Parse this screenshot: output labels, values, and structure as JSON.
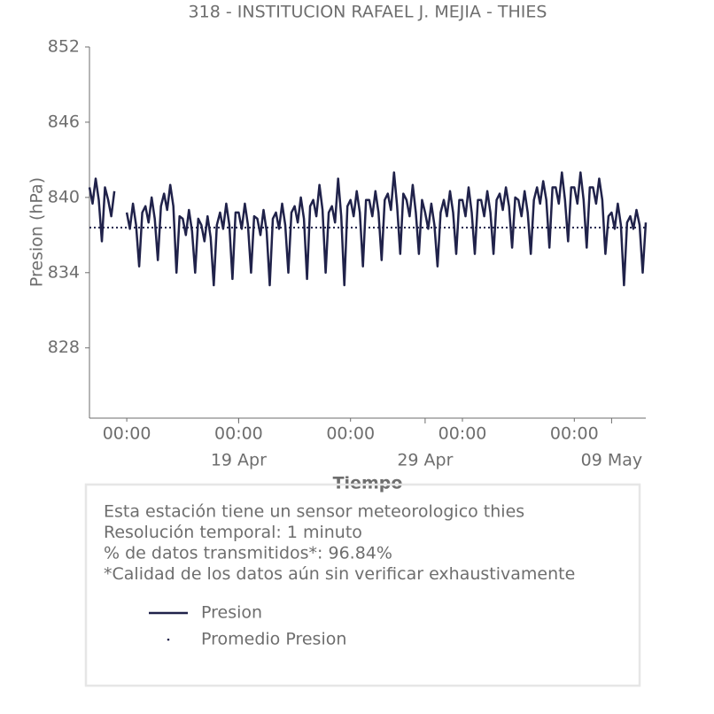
{
  "chart_data": {
    "type": "line",
    "title": "318 - INSTITUCION RAFAEL J. MEJIA - THIES",
    "y_label": "Presion (hPa)",
    "x_label": "Tiempo",
    "info": [
      "Esta estación tiene un sensor meteorologico thies",
      "Resolución temporal: 1 minuto",
      "% de datos transmitidos*: 96.84%",
      "*Calidad de los datos aún sin verificar exhaustivamente"
    ],
    "ylim": [
      822.4,
      852
    ],
    "yticks": [
      828,
      834,
      840,
      846,
      852
    ],
    "xlim": [
      "11 Apr 00:00",
      "10 May 20:00"
    ],
    "xticks": [
      {
        "value": "13 Apr 00:00",
        "label": "00:00"
      },
      {
        "value": "19 Apr 00:00",
        "label": "00:00"
      },
      {
        "value": "25 Apr 00:00",
        "label": "00:00"
      },
      {
        "value": "01 May 00:00",
        "label": "00:00"
      },
      {
        "value": "07 May 00:00",
        "label": "00:00"
      }
    ],
    "date_ticks": [
      {
        "value": "19 Apr 00:00",
        "label": "19 Apr"
      },
      {
        "value": "29 Apr 00:00",
        "label": "29 Apr"
      },
      {
        "value": "09 May 00:00",
        "label": "09 May"
      }
    ],
    "x": [
      "11 Apr 00:00",
      "11 Apr 04:00",
      "11 Apr 08:00",
      "11 Apr 12:00",
      "11 Apr 16:00",
      "11 Apr 20:00",
      "12 Apr 00:00",
      "12 Apr 04:00",
      "12 Apr 08:00",
      "12 Apr 12:00",
      "12 Apr 16:00",
      "12 Apr 20:00",
      "13 Apr 00:00",
      "13 Apr 04:00",
      "13 Apr 08:00",
      "13 Apr 12:00",
      "13 Apr 16:00",
      "13 Apr 20:00",
      "14 Apr 00:00",
      "14 Apr 04:00",
      "14 Apr 08:00",
      "14 Apr 12:00",
      "14 Apr 16:00",
      "14 Apr 20:00",
      "15 Apr 00:00",
      "15 Apr 04:00",
      "15 Apr 08:00",
      "15 Apr 12:00",
      "15 Apr 16:00",
      "15 Apr 20:00",
      "16 Apr 00:00",
      "16 Apr 04:00",
      "16 Apr 08:00",
      "16 Apr 12:00",
      "16 Apr 16:00",
      "16 Apr 20:00",
      "17 Apr 00:00",
      "17 Apr 04:00",
      "17 Apr 08:00",
      "17 Apr 12:00",
      "17 Apr 16:00",
      "17 Apr 20:00",
      "18 Apr 00:00",
      "18 Apr 04:00",
      "18 Apr 08:00",
      "18 Apr 12:00",
      "18 Apr 16:00",
      "18 Apr 20:00",
      "19 Apr 00:00",
      "19 Apr 04:00",
      "19 Apr 08:00",
      "19 Apr 12:00",
      "19 Apr 16:00",
      "19 Apr 20:00",
      "20 Apr 00:00",
      "20 Apr 04:00",
      "20 Apr 08:00",
      "20 Apr 12:00",
      "20 Apr 16:00",
      "20 Apr 20:00",
      "21 Apr 00:00",
      "21 Apr 04:00",
      "21 Apr 08:00",
      "21 Apr 12:00",
      "21 Apr 16:00",
      "21 Apr 20:00",
      "22 Apr 00:00",
      "22 Apr 04:00",
      "22 Apr 08:00",
      "22 Apr 12:00",
      "22 Apr 16:00",
      "22 Apr 20:00",
      "23 Apr 00:00",
      "23 Apr 04:00",
      "23 Apr 08:00",
      "23 Apr 12:00",
      "23 Apr 16:00",
      "23 Apr 20:00",
      "24 Apr 00:00",
      "24 Apr 04:00",
      "24 Apr 08:00",
      "24 Apr 12:00",
      "24 Apr 16:00",
      "24 Apr 20:00",
      "25 Apr 00:00",
      "25 Apr 04:00",
      "25 Apr 08:00",
      "25 Apr 12:00",
      "25 Apr 16:00",
      "25 Apr 20:00",
      "26 Apr 00:00",
      "26 Apr 04:00",
      "26 Apr 08:00",
      "26 Apr 12:00",
      "26 Apr 16:00",
      "26 Apr 20:00",
      "27 Apr 00:00",
      "27 Apr 04:00",
      "27 Apr 08:00",
      "27 Apr 12:00",
      "27 Apr 16:00",
      "27 Apr 20:00",
      "28 Apr 00:00",
      "28 Apr 04:00",
      "28 Apr 08:00",
      "28 Apr 12:00",
      "28 Apr 16:00",
      "28 Apr 20:00",
      "29 Apr 00:00",
      "29 Apr 04:00",
      "29 Apr 08:00",
      "29 Apr 12:00",
      "29 Apr 16:00",
      "29 Apr 20:00",
      "30 Apr 00:00",
      "30 Apr 04:00",
      "30 Apr 08:00",
      "30 Apr 12:00",
      "30 Apr 16:00",
      "30 Apr 20:00",
      "01 May 00:00",
      "01 May 04:00",
      "01 May 08:00",
      "01 May 12:00",
      "01 May 16:00",
      "01 May 20:00",
      "02 May 00:00",
      "02 May 04:00",
      "02 May 08:00",
      "02 May 12:00",
      "02 May 16:00",
      "02 May 20:00",
      "03 May 00:00",
      "03 May 04:00",
      "03 May 08:00",
      "03 May 12:00",
      "03 May 16:00",
      "03 May 20:00",
      "04 May 00:00",
      "04 May 04:00",
      "04 May 08:00",
      "04 May 12:00",
      "04 May 16:00",
      "04 May 20:00",
      "05 May 00:00",
      "05 May 04:00",
      "05 May 08:00",
      "05 May 12:00",
      "05 May 16:00",
      "05 May 20:00",
      "06 May 00:00",
      "06 May 04:00",
      "06 May 08:00",
      "06 May 12:00",
      "06 May 16:00",
      "06 May 20:00",
      "07 May 00:00",
      "07 May 04:00",
      "07 May 08:00",
      "07 May 12:00",
      "07 May 16:00",
      "07 May 20:00",
      "08 May 00:00",
      "08 May 04:00",
      "08 May 08:00",
      "08 May 12:00",
      "08 May 16:00",
      "08 May 20:00",
      "09 May 00:00",
      "09 May 04:00",
      "09 May 08:00",
      "09 May 12:00",
      "09 May 16:00",
      "09 May 20:00",
      "10 May 00:00",
      "10 May 04:00",
      "10 May 08:00",
      "10 May 12:00",
      "10 May 16:00",
      "10 May 20:00"
    ],
    "series": [
      {
        "name": "Presion",
        "color": "#20224a",
        "values": [
          840.8,
          839.5,
          841.5,
          839.8,
          836.5,
          840.8,
          839.8,
          838.5,
          840.5,
          null,
          null,
          null,
          838.8,
          837.5,
          839.5,
          837.8,
          834.5,
          838.8,
          839.3,
          838,
          840,
          838.3,
          835,
          839.3,
          840.3,
          839,
          841,
          839.3,
          834,
          838.5,
          838.3,
          837,
          839,
          837.3,
          834,
          838.3,
          837.8,
          836.5,
          838.5,
          836.8,
          833,
          837.8,
          838.8,
          837.5,
          839.5,
          837.8,
          833.5,
          838.8,
          838.8,
          837.5,
          839.5,
          837.8,
          834,
          838.5,
          838.3,
          837,
          839,
          837.3,
          833,
          838.3,
          838.8,
          837.5,
          839.5,
          837.8,
          834,
          838.8,
          839.3,
          838,
          840,
          838.3,
          833.5,
          839.3,
          839.8,
          838.5,
          841,
          839,
          834,
          838.8,
          839.3,
          838,
          841.5,
          838.5,
          833,
          839.3,
          839.8,
          838.5,
          840.5,
          838.8,
          834.5,
          839.8,
          839.8,
          838.5,
          840.5,
          838.8,
          835,
          839.8,
          840.3,
          839,
          842,
          839.3,
          835.5,
          840.3,
          839.8,
          838.5,
          841,
          838.8,
          835.5,
          839.8,
          838.8,
          837.5,
          839.5,
          837.8,
          834.5,
          838.8,
          839.8,
          838.5,
          840.5,
          838.8,
          835.5,
          839.8,
          839.8,
          838.5,
          840.8,
          838.8,
          835.5,
          839.8,
          839.8,
          838.5,
          840.5,
          838.8,
          835.5,
          839.8,
          840.3,
          839,
          840.8,
          839.3,
          836,
          840,
          839.8,
          838.5,
          840.5,
          838.8,
          835.5,
          839.8,
          840.8,
          839.5,
          841.3,
          839.8,
          836,
          840.8,
          840.8,
          839.5,
          842,
          839.8,
          836.5,
          840.8,
          840.8,
          839.5,
          842,
          839.8,
          836,
          840.8,
          840.8,
          839.5,
          841.5,
          839.8,
          835.5,
          838.5,
          838.8,
          837.5,
          839.5,
          837.8,
          833,
          838,
          838.5,
          837.5,
          839,
          837.8,
          834,
          838
        ]
      },
      {
        "name": "Promedio Presion",
        "color": "#20224a",
        "value": 837.6
      }
    ]
  }
}
